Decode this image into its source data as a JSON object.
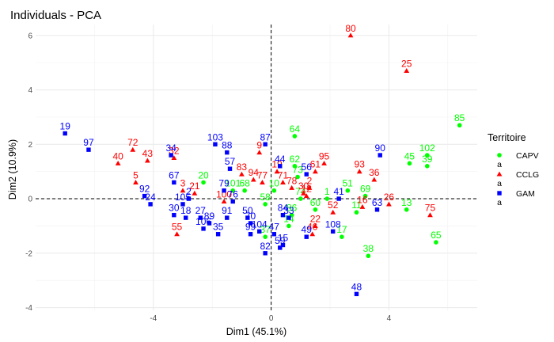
{
  "chart_data": {
    "type": "scatter",
    "title": "Individuals - PCA",
    "xlabel": "Dim1 (45.1%)",
    "ylabel": "Dim2 (10.9%)",
    "xlim": [
      -8,
      7
    ],
    "ylim": [
      -4.1,
      6.4
    ],
    "xticks": [
      -4,
      0,
      4
    ],
    "yticks": [
      -4,
      -2,
      0,
      2,
      4,
      6
    ],
    "grid": true,
    "legend": {
      "title": "Territoire",
      "position": "right",
      "items": [
        {
          "name": "CAPV",
          "color": "#00ff00",
          "shape": "circle"
        },
        {
          "name": "CCLG",
          "color": "#ff0000",
          "shape": "triangle"
        },
        {
          "name": "GAM",
          "color": "#0000ff",
          "shape": "square"
        }
      ],
      "key_glyph": "a"
    },
    "series": [
      {
        "name": "CAPV",
        "color": "#00ff00",
        "shape": "circle",
        "points": [
          {
            "label": "85",
            "x": 6.4,
            "y": 2.7
          },
          {
            "label": "102",
            "x": 5.3,
            "y": 1.6
          },
          {
            "label": "45",
            "x": 4.7,
            "y": 1.3
          },
          {
            "label": "39",
            "x": 5.3,
            "y": 1.2
          },
          {
            "label": "65",
            "x": 5.6,
            "y": -1.6
          },
          {
            "label": "13",
            "x": 4.6,
            "y": -0.4
          },
          {
            "label": "38",
            "x": 3.3,
            "y": -2.1
          },
          {
            "label": "17",
            "x": 2.4,
            "y": -1.4
          },
          {
            "label": "69",
            "x": 3.2,
            "y": 0.1
          },
          {
            "label": "51",
            "x": 2.6,
            "y": 0.3
          },
          {
            "label": "11",
            "x": 2.9,
            "y": -0.5
          },
          {
            "label": "60",
            "x": 1.5,
            "y": -0.4
          },
          {
            "label": "74",
            "x": 1.0,
            "y": 0.0
          },
          {
            "label": "64",
            "x": 0.8,
            "y": 2.3
          },
          {
            "label": "62",
            "x": 0.8,
            "y": 1.2
          },
          {
            "label": "73",
            "x": 0.9,
            "y": 0.8
          },
          {
            "label": "86",
            "x": 0.7,
            "y": -0.6
          },
          {
            "label": "14",
            "x": 0.6,
            "y": -1.0
          },
          {
            "label": "58",
            "x": -0.2,
            "y": -0.2
          },
          {
            "label": "68",
            "x": -0.9,
            "y": 0.3
          },
          {
            "label": "101",
            "x": -1.3,
            "y": 0.3
          },
          {
            "label": "20",
            "x": -2.3,
            "y": 0.6
          },
          {
            "label": "37",
            "x": -0.2,
            "y": -1.4
          },
          {
            "label": "1",
            "x": 1.9,
            "y": 0.0
          },
          {
            "label": "10",
            "x": 0.1,
            "y": 0.3
          }
        ]
      },
      {
        "name": "CCLG",
        "color": "#ff0000",
        "shape": "triangle",
        "points": [
          {
            "label": "80",
            "x": 2.7,
            "y": 6.0
          },
          {
            "label": "25",
            "x": 4.6,
            "y": 4.7
          },
          {
            "label": "72",
            "x": -4.7,
            "y": 1.8
          },
          {
            "label": "40",
            "x": -5.2,
            "y": 1.3
          },
          {
            "label": "43",
            "x": -4.2,
            "y": 1.4
          },
          {
            "label": "5",
            "x": -4.6,
            "y": 0.6
          },
          {
            "label": "32",
            "x": -3.3,
            "y": 1.5
          },
          {
            "label": "9",
            "x": -0.4,
            "y": 1.7
          },
          {
            "label": "95",
            "x": 1.8,
            "y": 1.3
          },
          {
            "label": "93",
            "x": 3.0,
            "y": 1.0
          },
          {
            "label": "36",
            "x": 3.5,
            "y": 0.7
          },
          {
            "label": "26",
            "x": 4.0,
            "y": -0.2
          },
          {
            "label": "75",
            "x": 5.4,
            "y": -0.6
          },
          {
            "label": "16",
            "x": 3.1,
            "y": -0.3
          },
          {
            "label": "52",
            "x": 2.1,
            "y": -0.5
          },
          {
            "label": "46",
            "x": 1.4,
            "y": -1.3
          },
          {
            "label": "22",
            "x": 1.5,
            "y": -1.0
          },
          {
            "label": "55",
            "x": -3.2,
            "y": -1.3
          },
          {
            "label": "21",
            "x": -2.6,
            "y": 0.2
          },
          {
            "label": "3",
            "x": -3.0,
            "y": 0.3
          },
          {
            "label": "100",
            "x": -1.6,
            "y": -0.1
          },
          {
            "label": "83",
            "x": -1.0,
            "y": 0.9
          },
          {
            "label": "94",
            "x": -0.6,
            "y": 0.7
          },
          {
            "label": "77",
            "x": -0.3,
            "y": 0.6
          },
          {
            "label": "19",
            "x": 0.2,
            "y": 1.0
          },
          {
            "label": "71",
            "x": 0.4,
            "y": 0.6
          },
          {
            "label": "78",
            "x": 0.7,
            "y": 0.4
          },
          {
            "label": "30",
            "x": 1.1,
            "y": 0.2
          },
          {
            "label": "2",
            "x": 1.3,
            "y": 0.4
          },
          {
            "label": "61",
            "x": 1.5,
            "y": 1.0
          },
          {
            "label": "12",
            "x": 1.2,
            "y": 0.1
          }
        ]
      },
      {
        "name": "GAM",
        "color": "#0000ff",
        "shape": "square",
        "points": [
          {
            "label": "19",
            "x": -7.0,
            "y": 2.4
          },
          {
            "label": "97",
            "x": -6.2,
            "y": 1.8
          },
          {
            "label": "92",
            "x": -4.3,
            "y": 0.1
          },
          {
            "label": "24",
            "x": -4.1,
            "y": -0.2
          },
          {
            "label": "34",
            "x": -3.4,
            "y": 1.6
          },
          {
            "label": "67",
            "x": -3.3,
            "y": 0.6
          },
          {
            "label": "30",
            "x": -3.3,
            "y": -0.6
          },
          {
            "label": "105",
            "x": -3.0,
            "y": -0.2
          },
          {
            "label": "18",
            "x": -2.9,
            "y": -0.7
          },
          {
            "label": "2",
            "x": -2.8,
            "y": 0.0
          },
          {
            "label": "27",
            "x": -2.4,
            "y": -0.7
          },
          {
            "label": "106",
            "x": -2.3,
            "y": -1.1
          },
          {
            "label": "89",
            "x": -2.1,
            "y": -0.9
          },
          {
            "label": "35",
            "x": -1.8,
            "y": -1.3
          },
          {
            "label": "103",
            "x": -1.9,
            "y": 2.0
          },
          {
            "label": "88",
            "x": -1.5,
            "y": 1.7
          },
          {
            "label": "57",
            "x": -1.4,
            "y": 1.1
          },
          {
            "label": "79",
            "x": -1.6,
            "y": 0.3
          },
          {
            "label": "91",
            "x": -1.5,
            "y": -0.7
          },
          {
            "label": "76",
            "x": -1.3,
            "y": -0.1
          },
          {
            "label": "50",
            "x": -0.8,
            "y": -0.7
          },
          {
            "label": "70",
            "x": -0.7,
            "y": -0.9
          },
          {
            "label": "99",
            "x": -0.7,
            "y": -1.3
          },
          {
            "label": "104",
            "x": -0.4,
            "y": -1.2
          },
          {
            "label": "82",
            "x": -0.2,
            "y": -2.0
          },
          {
            "label": "47",
            "x": 0.1,
            "y": -1.3
          },
          {
            "label": "15",
            "x": 0.4,
            "y": -1.7
          },
          {
            "label": "59",
            "x": 0.3,
            "y": -1.8
          },
          {
            "label": "87",
            "x": -0.2,
            "y": 2.0
          },
          {
            "label": "44",
            "x": 0.3,
            "y": 1.2
          },
          {
            "label": "56",
            "x": 1.2,
            "y": 0.9
          },
          {
            "label": "84",
            "x": 0.4,
            "y": -0.6
          },
          {
            "label": "33",
            "x": 0.6,
            "y": -0.7
          },
          {
            "label": "49",
            "x": 1.2,
            "y": -1.4
          },
          {
            "label": "41",
            "x": 2.3,
            "y": 0.0
          },
          {
            "label": "108",
            "x": 2.1,
            "y": -1.2
          },
          {
            "label": "90",
            "x": 3.7,
            "y": 1.6
          },
          {
            "label": "63",
            "x": 3.6,
            "y": -0.4
          },
          {
            "label": "48",
            "x": 2.9,
            "y": -3.5
          }
        ]
      }
    ]
  }
}
